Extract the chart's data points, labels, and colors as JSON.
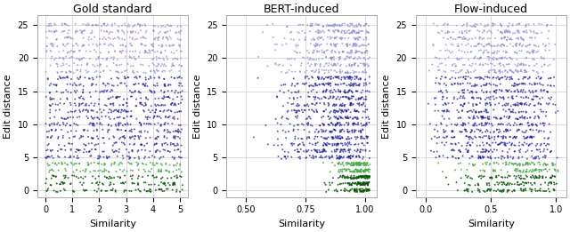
{
  "titles": [
    "Gold standard",
    "BERT-induced",
    "Flow-induced"
  ],
  "xlabel": "Similarity",
  "ylabel": "Edit distance",
  "plots": [
    {
      "xlim": [
        -0.3,
        5.3
      ],
      "xticks": [
        0,
        1,
        2,
        3,
        4,
        5
      ],
      "xticklabels": [
        "0",
        "1",
        "2",
        "3",
        "4",
        "5"
      ],
      "x_blue_low": 0.0,
      "x_blue_high": 5.1,
      "x_green_low": 0.0,
      "x_green_high": 5.1
    },
    {
      "xlim": [
        0.42,
        1.05
      ],
      "xticks": [
        0.5,
        0.75,
        1.0
      ],
      "xticklabels": [
        "0.50",
        "0.75",
        "1.00"
      ],
      "x_blue_low": 0.45,
      "x_blue_high": 1.02,
      "x_green_low": 0.65,
      "x_green_high": 1.02
    },
    {
      "xlim": [
        -0.08,
        1.08
      ],
      "xticks": [
        0.0,
        0.5,
        1.0
      ],
      "xticklabels": [
        "0.0",
        "0.5",
        "1.0"
      ],
      "x_blue_low": 0.0,
      "x_blue_high": 1.02,
      "x_green_low": 0.0,
      "x_green_high": 1.02
    }
  ],
  "ylim": [
    -1.0,
    26.5
  ],
  "yticks": [
    0,
    5,
    10,
    15,
    20,
    25
  ],
  "n_per_row_blue": 60,
  "n_per_row_green": 60,
  "marker_size": 2,
  "alpha_dark_blue": 0.85,
  "alpha_light_blue": 0.55,
  "alpha_dark_green": 0.85,
  "alpha_light_green": 0.55,
  "dark_blue": "#1111aa",
  "light_blue": "#8888dd",
  "dark_green": "#005500",
  "light_green": "#44aa44",
  "background_color": "#ffffff",
  "grid_color": "#cccccc",
  "seed": 42
}
